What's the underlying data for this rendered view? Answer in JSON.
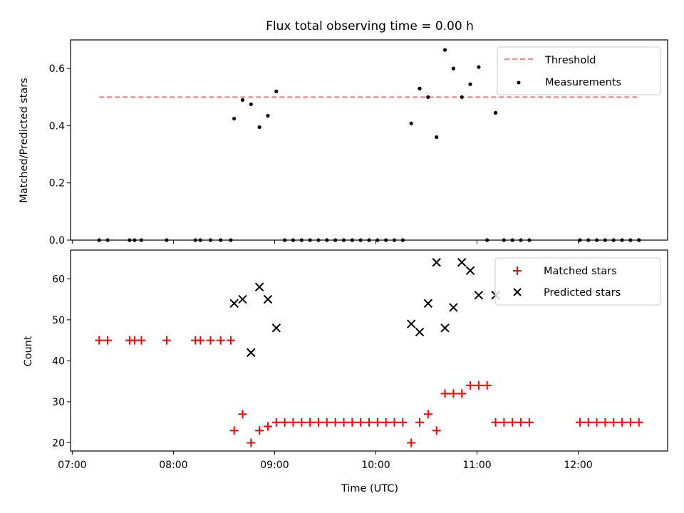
{
  "chart_data": [
    {
      "type": "scatter",
      "title": "Flux total observing time = 0.00 h",
      "ylabel": "Matched/Predicted stars",
      "xlabel": "",
      "xlim": [
        "06:59",
        "12:53"
      ],
      "ylim": [
        0,
        0.7
      ],
      "yticks": [
        "0.0",
        "0.2",
        "0.4",
        "0.6"
      ],
      "legend_position": "top-right",
      "legend": [
        "Threshold",
        "Measurements"
      ],
      "threshold": {
        "value": 0.5,
        "x_start": "07:16",
        "x_end": "12:36",
        "color": "#ff7f7f",
        "style": "dashed"
      },
      "series": [
        {
          "name": "Measurements",
          "color": "#000000",
          "marker": "dot",
          "points": [
            [
              "07:16",
              0
            ],
            [
              "07:21",
              0
            ],
            [
              "07:34",
              0
            ],
            [
              "07:37",
              0
            ],
            [
              "07:41",
              0
            ],
            [
              "07:56",
              0
            ],
            [
              "08:13",
              0
            ],
            [
              "08:16",
              0
            ],
            [
              "08:22",
              0
            ],
            [
              "08:28",
              0
            ],
            [
              "08:34",
              0
            ],
            [
              "08:36",
              0.425
            ],
            [
              "08:41",
              0.49
            ],
            [
              "08:46",
              0.475
            ],
            [
              "08:51",
              0.395
            ],
            [
              "08:56",
              0.435
            ],
            [
              "09:01",
              0.52
            ],
            [
              "09:06",
              0
            ],
            [
              "09:11",
              0
            ],
            [
              "09:16",
              0
            ],
            [
              "09:21",
              0
            ],
            [
              "09:26",
              0
            ],
            [
              "09:31",
              0
            ],
            [
              "09:36",
              0
            ],
            [
              "09:41",
              0
            ],
            [
              "09:46",
              0
            ],
            [
              "09:51",
              0
            ],
            [
              "09:56",
              0
            ],
            [
              "10:01",
              0
            ],
            [
              "10:06",
              0
            ],
            [
              "10:11",
              0
            ],
            [
              "10:16",
              0
            ],
            [
              "10:21",
              0.408
            ],
            [
              "10:26",
              0.53
            ],
            [
              "10:31",
              0.5
            ],
            [
              "10:36",
              0.36
            ],
            [
              "10:41",
              0.665
            ],
            [
              "10:46",
              0.6
            ],
            [
              "10:51",
              0.5
            ],
            [
              "10:56",
              0.545
            ],
            [
              "11:01",
              0.605
            ],
            [
              "11:06",
              0
            ],
            [
              "11:11",
              0.445
            ],
            [
              "11:16",
              0
            ],
            [
              "11:21",
              0
            ],
            [
              "11:26",
              0
            ],
            [
              "11:31",
              0
            ],
            [
              "12:01",
              0
            ],
            [
              "12:06",
              0
            ],
            [
              "12:11",
              0
            ],
            [
              "12:16",
              0
            ],
            [
              "12:21",
              0
            ],
            [
              "12:26",
              0
            ],
            [
              "12:31",
              0
            ],
            [
              "12:36",
              0
            ]
          ]
        }
      ]
    },
    {
      "type": "scatter",
      "title": "",
      "xlabel": "Time (UTC)",
      "ylabel": "Count",
      "xlim": [
        "06:59",
        "12:53"
      ],
      "ylim": [
        18,
        67
      ],
      "xticks": [
        "07:00",
        "08:00",
        "09:00",
        "10:00",
        "11:00",
        "12:00"
      ],
      "yticks": [
        "20",
        "30",
        "40",
        "50",
        "60"
      ],
      "legend_position": "top-right",
      "legend": [
        "Matched stars",
        "Predicted stars"
      ],
      "series": [
        {
          "name": "Matched stars",
          "color": "#ff0000",
          "marker": "plus",
          "points": [
            [
              "07:16",
              45
            ],
            [
              "07:21",
              45
            ],
            [
              "07:34",
              45
            ],
            [
              "07:37",
              45
            ],
            [
              "07:41",
              45
            ],
            [
              "07:56",
              45
            ],
            [
              "08:13",
              45
            ],
            [
              "08:16",
              45
            ],
            [
              "08:22",
              45
            ],
            [
              "08:28",
              45
            ],
            [
              "08:34",
              45
            ],
            [
              "08:36",
              23
            ],
            [
              "08:41",
              27
            ],
            [
              "08:46",
              20
            ],
            [
              "08:51",
              23
            ],
            [
              "08:56",
              24
            ],
            [
              "09:01",
              25
            ],
            [
              "09:06",
              25
            ],
            [
              "09:11",
              25
            ],
            [
              "09:16",
              25
            ],
            [
              "09:21",
              25
            ],
            [
              "09:26",
              25
            ],
            [
              "09:31",
              25
            ],
            [
              "09:36",
              25
            ],
            [
              "09:41",
              25
            ],
            [
              "09:46",
              25
            ],
            [
              "09:51",
              25
            ],
            [
              "09:56",
              25
            ],
            [
              "10:01",
              25
            ],
            [
              "10:06",
              25
            ],
            [
              "10:11",
              25
            ],
            [
              "10:16",
              25
            ],
            [
              "10:21",
              20
            ],
            [
              "10:26",
              25
            ],
            [
              "10:31",
              27
            ],
            [
              "10:36",
              23
            ],
            [
              "10:41",
              32
            ],
            [
              "10:46",
              32
            ],
            [
              "10:51",
              32
            ],
            [
              "10:56",
              34
            ],
            [
              "11:01",
              34
            ],
            [
              "11:06",
              34
            ],
            [
              "11:11",
              25
            ],
            [
              "11:16",
              25
            ],
            [
              "11:21",
              25
            ],
            [
              "11:26",
              25
            ],
            [
              "11:31",
              25
            ],
            [
              "12:01",
              25
            ],
            [
              "12:06",
              25
            ],
            [
              "12:11",
              25
            ],
            [
              "12:16",
              25
            ],
            [
              "12:21",
              25
            ],
            [
              "12:26",
              25
            ],
            [
              "12:31",
              25
            ],
            [
              "12:36",
              25
            ]
          ]
        },
        {
          "name": "Predicted stars",
          "color": "#000000",
          "marker": "x",
          "points": [
            [
              "08:36",
              54
            ],
            [
              "08:41",
              55
            ],
            [
              "08:46",
              42
            ],
            [
              "08:51",
              58
            ],
            [
              "08:56",
              55
            ],
            [
              "09:01",
              48
            ],
            [
              "10:21",
              49
            ],
            [
              "10:26",
              47
            ],
            [
              "10:31",
              54
            ],
            [
              "10:36",
              64
            ],
            [
              "10:41",
              48
            ],
            [
              "10:46",
              53
            ],
            [
              "10:51",
              64
            ],
            [
              "10:56",
              62
            ],
            [
              "11:01",
              56
            ],
            [
              "11:11",
              56
            ]
          ]
        }
      ]
    }
  ]
}
